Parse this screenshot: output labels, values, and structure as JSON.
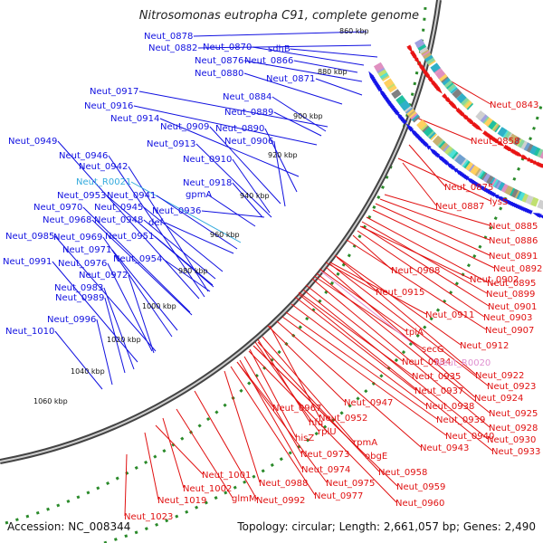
{
  "title": "Nitrosomonas eutropha C91, complete genome",
  "footer": {
    "accession": "Accession: NC_008344",
    "topology": "Topology: circular; Length: 2,661,057 bp; Genes: 2,490"
  },
  "ticks": [
    "860 kbp",
    "880 kbp",
    "900 kbp",
    "920 kbp",
    "940 kbp",
    "960 kbp",
    "980 kbp",
    "1000 kbp",
    "1020 kbp",
    "1040 kbp",
    "1060 kbp"
  ],
  "labels_left": [
    "Neut_0878",
    "Neut_0882",
    "Neut_0870",
    "sdhB",
    "Neut_0876",
    "Neut_0866",
    "Neut_0880",
    "Neut_0871",
    "Neut_0917",
    "Neut_0884",
    "Neut_0916",
    "Neut_0889",
    "Neut_0914",
    "Neut_0909",
    "Neut_0890",
    "Neut_0913",
    "Neut_0906",
    "Neut_0949",
    "Neut_0946",
    "Neut_0910",
    "Neut_0942",
    "Neut_0918",
    "Neut_R0021",
    "gpmA",
    "Neut_0953",
    "Neut_0941",
    "Neut_0970",
    "Neut_0945",
    "Neut_0936",
    "Neut_0968",
    "Neut_0948",
    "def",
    "Neut_0985",
    "Neut_0969",
    "Neut_0951",
    "Neut_0971",
    "Neut_0991",
    "Neut_0976",
    "Neut_0954",
    "Neut_0972",
    "Neut_0983",
    "Neut_0989",
    "Neut_0996",
    "Neut_1010"
  ],
  "labels_right": [
    "Neut_0843",
    "Neut_0858",
    "Neut_0875",
    "lysS",
    "Neut_0887",
    "Neut_0885",
    "Neut_0886",
    "Neut_0891",
    "Neut_0892",
    "Neut_0908",
    "Neut_0902",
    "Neut_0895",
    "Neut_0915",
    "Neut_0899",
    "Neut_0901",
    "Neut_0903",
    "Neut_0911",
    "Neut_0907",
    "tpiA",
    "Neut_0912",
    "secG",
    "Neut_0934",
    "Neut_R0020",
    "Neut_0922",
    "Neut_0935",
    "Neut_0923",
    "Neut_0937",
    "Neut_0924",
    "Neut_0947",
    "Neut_0938",
    "Neut_0967",
    "Neut_0952",
    "Neut_0925",
    "hfq",
    "Neut_0939",
    "Neut_0928",
    "rplU",
    "Neut_0940",
    "hisZ",
    "rpmA",
    "Neut_0930",
    "Neut_0943",
    "Neut_0933",
    "obgE",
    "Neut_0973",
    "Neut_0974",
    "Neut_0958",
    "Neut_1001",
    "Neut_0988",
    "Neut_0975",
    "Neut_0959",
    "Neut_1002",
    "Neut_0977",
    "Neut_0960",
    "Neut_1019",
    "glmM",
    "Neut_0992",
    "Neut_1023"
  ],
  "colors": {
    "forward": "#1010e0",
    "reverse": "#e01010",
    "rna_forward": "#33aadd",
    "rna_reverse": "#e090d0",
    "backbone": "#888888",
    "gc_dots": "#2a8a2a"
  }
}
